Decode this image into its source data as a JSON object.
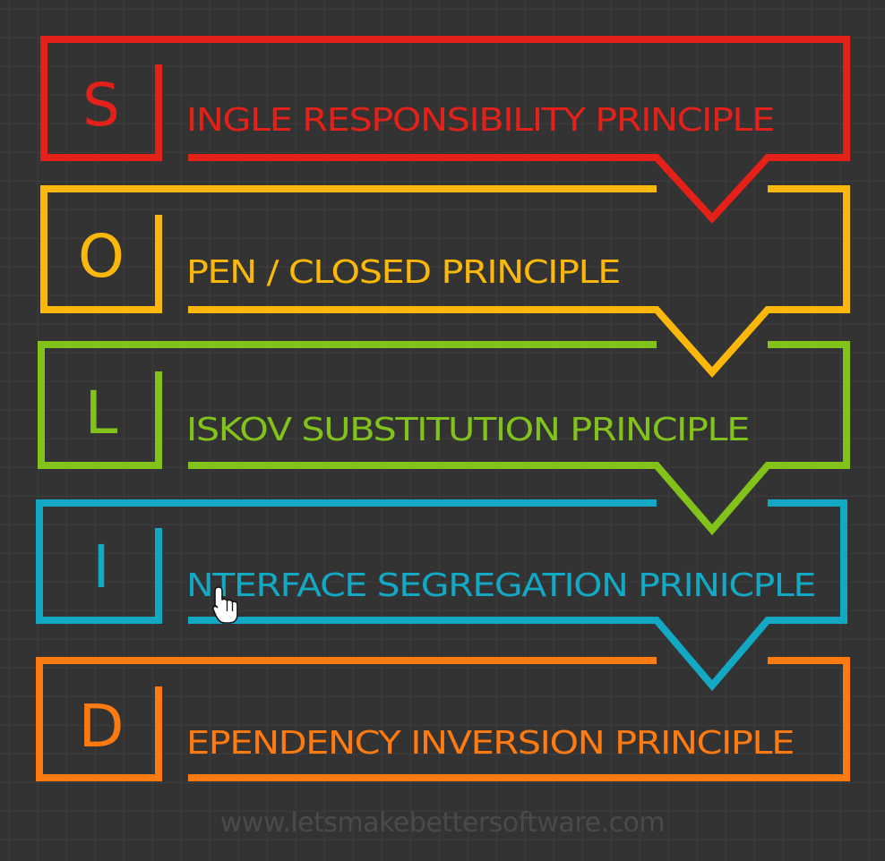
{
  "principles": [
    {
      "letter": "S",
      "text": "INGLE RESPONSIBILITY PRINCIPLE",
      "color": "#e32119"
    },
    {
      "letter": "O",
      "text": "PEN / CLOSED PRINCIPLE",
      "color": "#fbb80a"
    },
    {
      "letter": "L",
      "text": "ISKOV SUBSTITUTION PRINCIPLE",
      "color": "#82c31b"
    },
    {
      "letter": "I",
      "text": "NTERFACE SEGREGATION PRINICPLE",
      "color": "#13a8c4"
    },
    {
      "letter": "D",
      "text": "EPENDENCY INVERSION PRINCIPLE",
      "color": "#ff7a0f"
    }
  ],
  "footer": {
    "watermark": "www.letsmakebettersoftware.com"
  },
  "cursor": {
    "icon": "hand-pointer-icon"
  }
}
